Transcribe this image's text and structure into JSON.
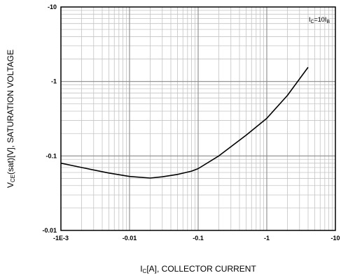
{
  "chart_data": {
    "type": "line",
    "title": "",
    "xlabel": {
      "prefix": "I",
      "sub": "C",
      "suffix": "[A], COLLECTOR CURRENT"
    },
    "ylabel": {
      "prefix": "V",
      "sub": "CE",
      "suffix": "(sat)[V], SATURATION VOLTAGE"
    },
    "annotation": {
      "prefix": "I",
      "sub1": "C",
      "mid": "=10I",
      "sub2": "B"
    },
    "x_scale": "log",
    "y_scale": "log",
    "xlim": [
      -0.001,
      -10
    ],
    "ylim": [
      -0.01,
      -10
    ],
    "x_ticks": [
      {
        "value": -0.001,
        "label": "-1E-3"
      },
      {
        "value": -0.01,
        "label": "-0.01"
      },
      {
        "value": -0.1,
        "label": "-0.1"
      },
      {
        "value": -1,
        "label": "-1"
      },
      {
        "value": -10,
        "label": "-10"
      }
    ],
    "y_ticks": [
      {
        "value": -0.01,
        "label": "-0.01"
      },
      {
        "value": -0.1,
        "label": "-0.1"
      },
      {
        "value": -1,
        "label": "-1"
      },
      {
        "value": -10,
        "label": "-10"
      }
    ],
    "grid": true,
    "series": [
      {
        "x": [
          -0.001,
          -0.002,
          -0.005,
          -0.01,
          -0.02,
          -0.03,
          -0.05,
          -0.08,
          -0.1,
          -0.2,
          -0.5,
          -1,
          -2,
          -4
        ],
        "y": [
          -0.08,
          -0.07,
          -0.059,
          -0.053,
          -0.0505,
          -0.0525,
          -0.0565,
          -0.0625,
          -0.0675,
          -0.1,
          -0.19,
          -0.32,
          -0.65,
          -1.55
        ]
      }
    ]
  }
}
